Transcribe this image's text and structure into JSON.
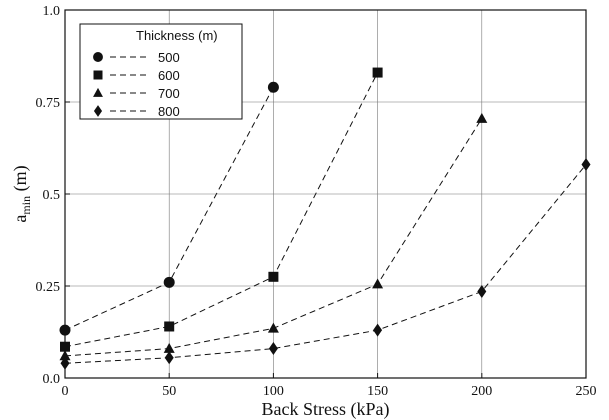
{
  "chart_data": {
    "type": "line",
    "title": "",
    "xlabel": "Back Stress (kPa)",
    "ylabel_main": "a",
    "ylabel_sub": "min",
    "ylabel_unit": " (m)",
    "xlim": [
      0,
      250
    ],
    "ylim": [
      0,
      1.0
    ],
    "x_ticks": [
      0,
      50,
      100,
      150,
      200,
      250
    ],
    "x_tick_labels": [
      "0",
      "50",
      "100",
      "150",
      "200",
      "250"
    ],
    "y_ticks": [
      0,
      0.25,
      0.5,
      0.75,
      1.0
    ],
    "y_tick_labels": [
      "0.0",
      "0.25",
      "0.5",
      "0.75",
      "1.0"
    ],
    "grid": true,
    "line_style": "dashed",
    "color": "#111111",
    "legend": {
      "title": "Thickness (m)",
      "placement": "top-left"
    },
    "series": [
      {
        "name": "500",
        "marker": "circle",
        "x": [
          0,
          50,
          100
        ],
        "y": [
          0.13,
          0.26,
          0.79
        ]
      },
      {
        "name": "600",
        "marker": "square",
        "x": [
          0,
          50,
          100,
          150
        ],
        "y": [
          0.085,
          0.14,
          0.275,
          0.83
        ]
      },
      {
        "name": "700",
        "marker": "triangle",
        "x": [
          0,
          50,
          100,
          150,
          200
        ],
        "y": [
          0.06,
          0.08,
          0.135,
          0.255,
          0.705
        ]
      },
      {
        "name": "800",
        "marker": "diamond",
        "x": [
          0,
          50,
          100,
          150,
          200,
          250
        ],
        "y": [
          0.04,
          0.055,
          0.08,
          0.13,
          0.235,
          0.58
        ]
      }
    ]
  }
}
